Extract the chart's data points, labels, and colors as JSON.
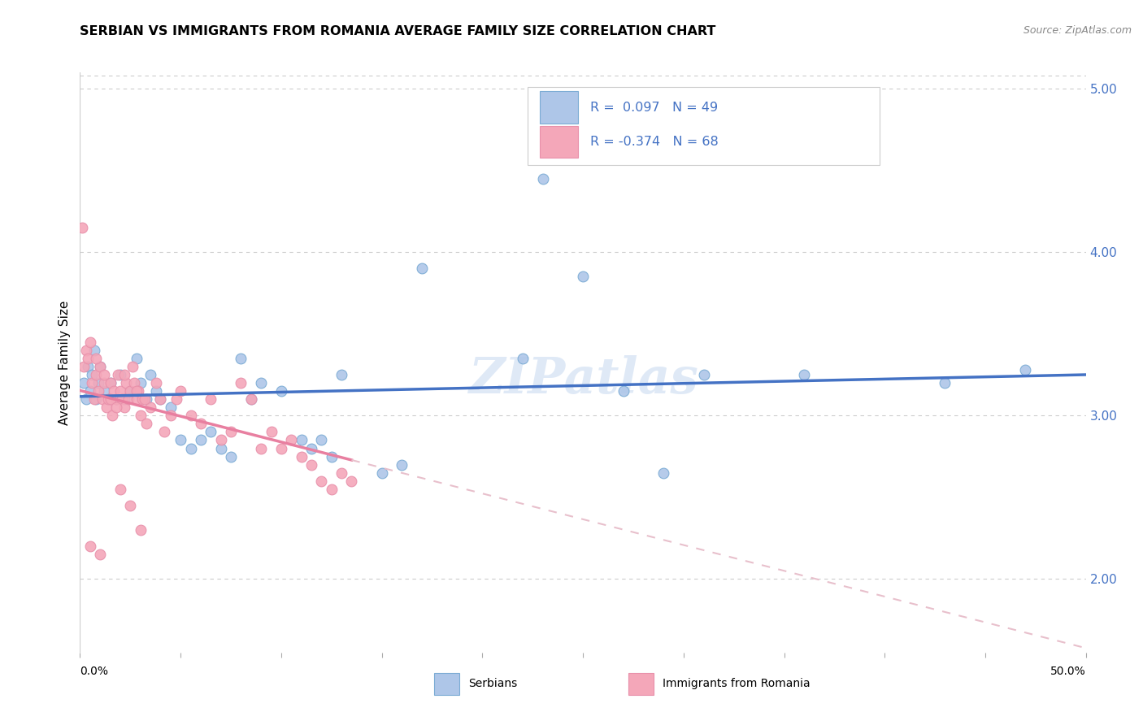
{
  "title": "SERBIAN VS IMMIGRANTS FROM ROMANIA AVERAGE FAMILY SIZE CORRELATION CHART",
  "source": "Source: ZipAtlas.com",
  "ylabel": "Average Family Size",
  "watermark": "ZIPatlas",
  "legend_serbian": {
    "label": "Serbians",
    "R": "0.097",
    "N": "49"
  },
  "legend_romania": {
    "label": "Immigrants from Romania",
    "R": "-0.374",
    "N": "68"
  },
  "serbian_points": [
    [
      0.002,
      3.2
    ],
    [
      0.003,
      3.1
    ],
    [
      0.004,
      3.3
    ],
    [
      0.005,
      3.15
    ],
    [
      0.006,
      3.25
    ],
    [
      0.007,
      3.4
    ],
    [
      0.008,
      3.1
    ],
    [
      0.009,
      3.2
    ],
    [
      0.01,
      3.3
    ],
    [
      0.012,
      3.15
    ],
    [
      0.015,
      3.2
    ],
    [
      0.018,
      3.1
    ],
    [
      0.02,
      3.25
    ],
    [
      0.022,
      3.1
    ],
    [
      0.025,
      3.15
    ],
    [
      0.028,
      3.35
    ],
    [
      0.03,
      3.2
    ],
    [
      0.033,
      3.1
    ],
    [
      0.035,
      3.25
    ],
    [
      0.038,
      3.15
    ],
    [
      0.04,
      3.1
    ],
    [
      0.045,
      3.05
    ],
    [
      0.05,
      2.85
    ],
    [
      0.055,
      2.8
    ],
    [
      0.06,
      2.85
    ],
    [
      0.065,
      2.9
    ],
    [
      0.07,
      2.8
    ],
    [
      0.075,
      2.75
    ],
    [
      0.08,
      3.35
    ],
    [
      0.085,
      3.1
    ],
    [
      0.09,
      3.2
    ],
    [
      0.1,
      3.15
    ],
    [
      0.11,
      2.85
    ],
    [
      0.115,
      2.8
    ],
    [
      0.12,
      2.85
    ],
    [
      0.125,
      2.75
    ],
    [
      0.13,
      3.25
    ],
    [
      0.15,
      2.65
    ],
    [
      0.16,
      2.7
    ],
    [
      0.17,
      3.9
    ],
    [
      0.22,
      3.35
    ],
    [
      0.23,
      4.45
    ],
    [
      0.25,
      3.85
    ],
    [
      0.27,
      3.15
    ],
    [
      0.29,
      2.65
    ],
    [
      0.31,
      3.25
    ],
    [
      0.36,
      3.25
    ],
    [
      0.43,
      3.2
    ],
    [
      0.47,
      3.28
    ]
  ],
  "romania_points": [
    [
      0.001,
      4.15
    ],
    [
      0.002,
      3.3
    ],
    [
      0.003,
      3.4
    ],
    [
      0.004,
      3.35
    ],
    [
      0.005,
      3.45
    ],
    [
      0.006,
      3.2
    ],
    [
      0.007,
      3.1
    ],
    [
      0.008,
      3.25
    ],
    [
      0.009,
      3.15
    ],
    [
      0.01,
      3.3
    ],
    [
      0.011,
      3.1
    ],
    [
      0.012,
      3.2
    ],
    [
      0.013,
      3.05
    ],
    [
      0.014,
      3.1
    ],
    [
      0.015,
      3.2
    ],
    [
      0.016,
      3.0
    ],
    [
      0.017,
      3.15
    ],
    [
      0.018,
      3.1
    ],
    [
      0.019,
      3.25
    ],
    [
      0.02,
      3.15
    ],
    [
      0.021,
      3.1
    ],
    [
      0.022,
      3.05
    ],
    [
      0.023,
      3.2
    ],
    [
      0.024,
      3.1
    ],
    [
      0.025,
      3.15
    ],
    [
      0.026,
      3.3
    ],
    [
      0.027,
      3.2
    ],
    [
      0.028,
      3.1
    ],
    [
      0.029,
      3.15
    ],
    [
      0.03,
      3.0
    ],
    [
      0.031,
      3.1
    ],
    [
      0.033,
      2.95
    ],
    [
      0.035,
      3.05
    ],
    [
      0.038,
      3.2
    ],
    [
      0.04,
      3.1
    ],
    [
      0.042,
      2.9
    ],
    [
      0.045,
      3.0
    ],
    [
      0.048,
      3.1
    ],
    [
      0.05,
      3.15
    ],
    [
      0.055,
      3.0
    ],
    [
      0.06,
      2.95
    ],
    [
      0.065,
      3.1
    ],
    [
      0.07,
      2.85
    ],
    [
      0.075,
      2.9
    ],
    [
      0.08,
      3.2
    ],
    [
      0.085,
      3.1
    ],
    [
      0.09,
      2.8
    ],
    [
      0.095,
      2.9
    ],
    [
      0.1,
      2.8
    ],
    [
      0.105,
      2.85
    ],
    [
      0.11,
      2.75
    ],
    [
      0.115,
      2.7
    ],
    [
      0.12,
      2.6
    ],
    [
      0.125,
      2.55
    ],
    [
      0.13,
      2.65
    ],
    [
      0.135,
      2.6
    ],
    [
      0.02,
      2.55
    ],
    [
      0.025,
      2.45
    ],
    [
      0.03,
      2.3
    ],
    [
      0.005,
      2.2
    ],
    [
      0.01,
      2.15
    ],
    [
      0.008,
      3.35
    ],
    [
      0.012,
      3.25
    ],
    [
      0.015,
      3.1
    ],
    [
      0.018,
      3.05
    ],
    [
      0.022,
      3.25
    ],
    [
      0.028,
      3.15
    ],
    [
      0.032,
      3.1
    ]
  ],
  "xmin": 0.0,
  "xmax": 0.5,
  "ymin": 1.55,
  "ymax": 5.1,
  "grid_color": "#cccccc",
  "bg_color": "#ffffff",
  "serbian_line_color": "#4472c4",
  "romania_line_solid_color": "#e87fa0",
  "romania_line_dash_color": "#e8c0cc",
  "serbian_marker_color": "#aec6e8",
  "romania_marker_color": "#f4a7b9",
  "serbian_marker_edge": "#7aabd4",
  "romania_marker_edge": "#e890aa",
  "legend_box_color": "#f0f0f0",
  "legend_box_edge": "#cccccc",
  "text_blue": "#4472c4"
}
